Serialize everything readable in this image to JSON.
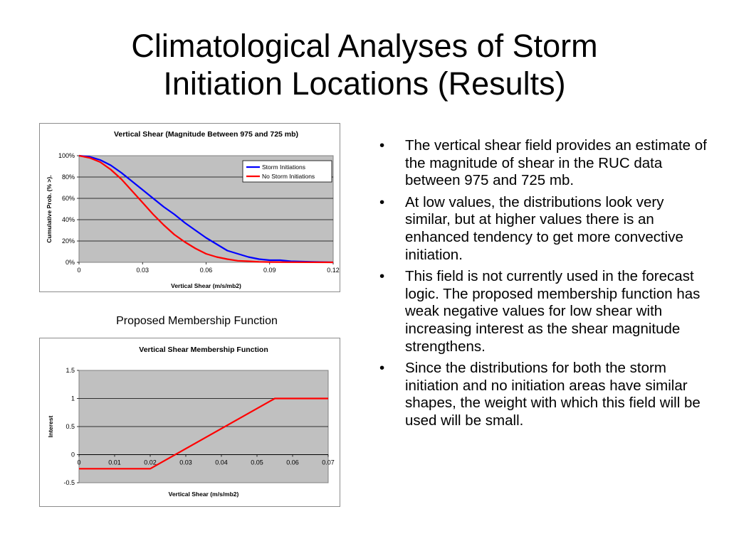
{
  "title_lines": [
    "Climatological Analyses of Storm",
    "Initiation Locations (Results)"
  ],
  "caption": "Proposed Membership Function",
  "bullet_symbol": "•",
  "bullets": [
    "The vertical shear field provides an estimate of the magnitude of shear in the RUC data between 975 and 725 mb.",
    "At low values, the distributions look very similar, but at higher values there is an enhanced tendency to get more convective initiation.",
    "This field is not currently used in the forecast logic.  The proposed membership function has weak negative values for low shear with increasing interest as the shear magnitude strengthens.",
    "Since the distributions for both the storm initiation and no initiation areas have similar shapes, the weight with which this field will be used will be small."
  ],
  "chart_data": [
    {
      "type": "line",
      "title": "Vertical Shear (Magnitude Between 975 and 725 mb)",
      "xlabel": "Vertical  Shear (m/s/mb2)",
      "ylabel": "Cumulative Prob. (% >).",
      "xlim": [
        0,
        0.12
      ],
      "ylim": [
        0,
        100
      ],
      "xticks": [
        0,
        0.03,
        0.06,
        0.09,
        0.12
      ],
      "xtick_labels": [
        "0",
        "0.03",
        "0.06",
        "0.09",
        "0.12"
      ],
      "yticks": [
        0,
        20,
        40,
        60,
        80,
        100
      ],
      "ytick_labels": [
        "0%",
        "20%",
        "40%",
        "60%",
        "80%",
        "100%"
      ],
      "grid": true,
      "plot_background": "#c0c0c0",
      "legend_position": "top-right",
      "series": [
        {
          "name": "Storm Initiations",
          "color": "#0000ff",
          "x": [
            0,
            0.005,
            0.01,
            0.015,
            0.02,
            0.025,
            0.03,
            0.035,
            0.04,
            0.045,
            0.05,
            0.055,
            0.06,
            0.065,
            0.07,
            0.075,
            0.08,
            0.085,
            0.09,
            0.095,
            0.1,
            0.11,
            0.12
          ],
          "y": [
            100,
            99,
            96,
            91,
            84,
            76,
            68,
            60,
            52,
            45,
            37,
            30,
            23,
            17,
            11,
            8,
            5,
            3,
            2,
            2,
            1,
            0.5,
            0
          ]
        },
        {
          "name": "No Storm Initiations",
          "color": "#ff0000",
          "x": [
            0,
            0.005,
            0.01,
            0.015,
            0.02,
            0.025,
            0.03,
            0.035,
            0.04,
            0.045,
            0.05,
            0.055,
            0.06,
            0.065,
            0.07,
            0.075,
            0.08,
            0.085,
            0.09,
            0.1,
            0.12
          ],
          "y": [
            100,
            98,
            94,
            87,
            78,
            67,
            56,
            45,
            35,
            26,
            19,
            13,
            8,
            5,
            3,
            1.5,
            1,
            0.5,
            0.3,
            0.1,
            0
          ]
        }
      ]
    },
    {
      "type": "line",
      "title": "Vertical Shear Membership Function",
      "xlabel": "Vertical Shear (m/s/mb2)",
      "ylabel": "Interest",
      "xlim": [
        0,
        0.07
      ],
      "ylim": [
        -0.5,
        1.5
      ],
      "xticks": [
        0,
        0.01,
        0.02,
        0.03,
        0.04,
        0.05,
        0.06,
        0.07
      ],
      "xtick_labels": [
        "0",
        "0.01",
        "0.02",
        "0.03",
        "0.04",
        "0.05",
        "0.06",
        "0.07"
      ],
      "yticks": [
        -0.5,
        0,
        0.5,
        1,
        1.5
      ],
      "ytick_labels": [
        "-0.5",
        "0",
        "0.5",
        "1",
        "1.5"
      ],
      "grid": true,
      "plot_background": "#c0c0c0",
      "series": [
        {
          "color": "#ff0000",
          "x": [
            0,
            0.02,
            0.055,
            0.07
          ],
          "y": [
            -0.25,
            -0.25,
            1,
            1
          ]
        }
      ]
    }
  ]
}
